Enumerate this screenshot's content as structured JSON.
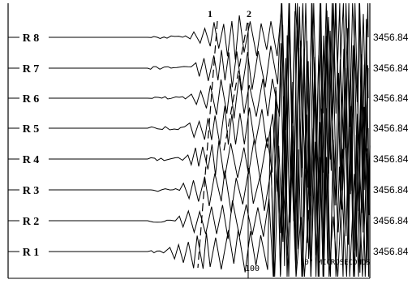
{
  "chart_data": {
    "type": "line",
    "traces": [
      {
        "label": "R 8",
        "value": "3456.84"
      },
      {
        "label": "R 7",
        "value": "3456.84"
      },
      {
        "label": "R 6",
        "value": "3456.84"
      },
      {
        "label": "R 5",
        "value": "3456.84"
      },
      {
        "label": "R 4",
        "value": "3456.84"
      },
      {
        "label": "R 3",
        "value": "3456.84"
      },
      {
        "label": "R 2",
        "value": "3456.84"
      },
      {
        "label": "R 1",
        "value": "3456.84"
      }
    ],
    "picks": [
      {
        "label": "1"
      },
      {
        "label": "2"
      }
    ],
    "time_marker": "100",
    "time_unit": "10\" MICROSECONDS"
  }
}
